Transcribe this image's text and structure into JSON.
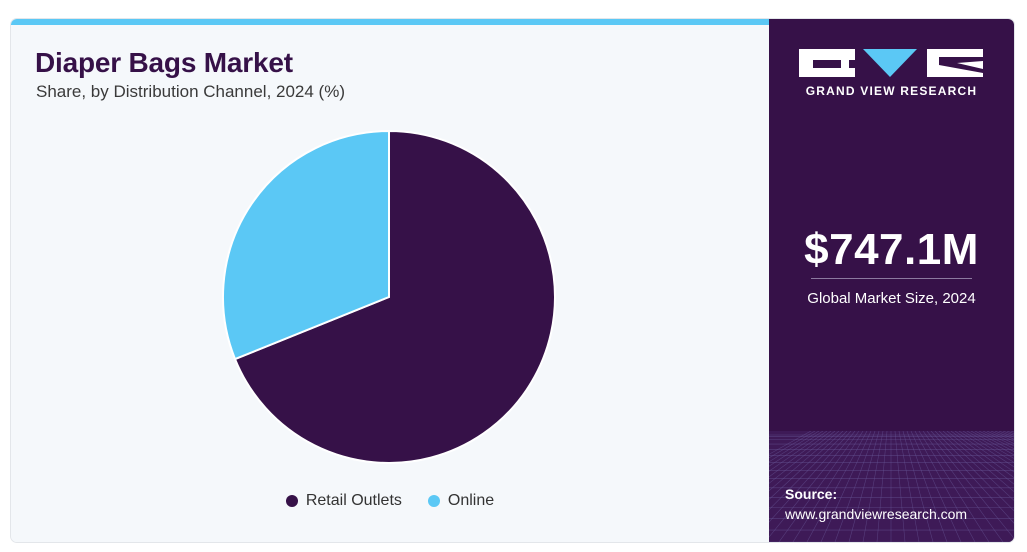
{
  "header": {
    "title": "Diaper Bags Market",
    "subtitle": "Share, by Distribution Channel, 2024 (%)"
  },
  "chart_data": {
    "type": "pie",
    "title": "Diaper Bags Market",
    "subtitle": "Share, by Distribution Channel, 2024 (%)",
    "start_angle_deg": 0,
    "direction": "clockwise",
    "legend_position": "bottom-center",
    "slices": [
      {
        "label": "Retail Outlets",
        "value": 68.9,
        "color": "#361148"
      },
      {
        "label": "Online",
        "value": 31.1,
        "color": "#5bc8f5"
      }
    ]
  },
  "sidebar": {
    "brand": "GRAND VIEW RESEARCH",
    "market_value": "$747.1M",
    "market_caption": "Global Market Size, 2024",
    "source_label": "Source:",
    "source_url": "www.grandviewresearch.com",
    "colors": {
      "panel": "#361148",
      "accent": "#5bc8f5"
    }
  }
}
